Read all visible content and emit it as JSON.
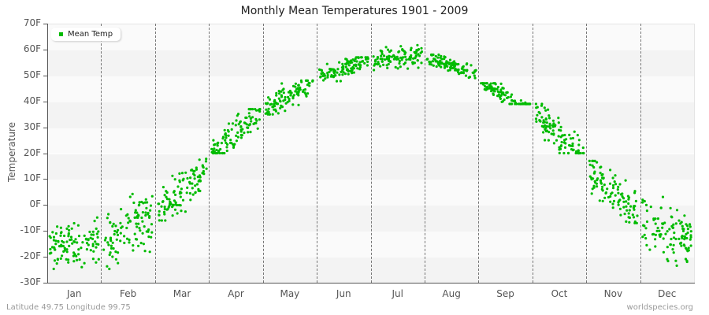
{
  "chart_data": {
    "type": "scatter",
    "title": "Monthly Mean Temperatures 1901 - 2009",
    "xlabel": "",
    "ylabel": "Temperature",
    "ylim": [
      -30,
      70
    ],
    "yticks": [
      "70F",
      "60F",
      "50F",
      "40F",
      "30F",
      "20F",
      "10F",
      "0F",
      "-10F",
      "-20F",
      "-30F"
    ],
    "categories": [
      "Jan",
      "Feb",
      "Mar",
      "Apr",
      "May",
      "Jun",
      "Jul",
      "Aug",
      "Sep",
      "Oct",
      "Nov",
      "Dec"
    ],
    "legend": [
      {
        "name": "Mean Temp",
        "color": "#00bb00"
      }
    ],
    "legend_position": "top-left",
    "grid": {
      "horizontal_bands": true,
      "vertical_month_dividers": "dashed"
    },
    "series": [
      {
        "name": "Mean Temp",
        "monthly_mean_approx": [
          -14,
          -9,
          6,
          28,
          42,
          53,
          57,
          54,
          42,
          27,
          5,
          -10
        ],
        "monthly_range_approx": [
          [
            -27,
            -3
          ],
          [
            -26,
            8
          ],
          [
            -6,
            18
          ],
          [
            20,
            37
          ],
          [
            35,
            48
          ],
          [
            47,
            57
          ],
          [
            50,
            62
          ],
          [
            49,
            58
          ],
          [
            39,
            47
          ],
          [
            20,
            39
          ],
          [
            -7,
            17
          ],
          [
            -26,
            4
          ]
        ]
      }
    ],
    "n_years": 109
  },
  "footer": {
    "left": "Latitude 49.75 Longitude 99.75",
    "right": "worldspecies.org"
  }
}
